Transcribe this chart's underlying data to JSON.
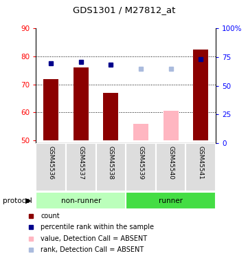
{
  "title": "GDS1301 / M27812_at",
  "samples": [
    "GSM45536",
    "GSM45537",
    "GSM45538",
    "GSM45539",
    "GSM45540",
    "GSM45541"
  ],
  "bar_values": [
    72,
    76,
    67,
    56,
    60.5,
    82.5
  ],
  "bar_absent": [
    false,
    false,
    false,
    true,
    true,
    false
  ],
  "rank_values": [
    77.5,
    78,
    77,
    75.5,
    75.5,
    79
  ],
  "rank_absent": [
    false,
    false,
    false,
    true,
    true,
    false
  ],
  "ylim_left": [
    49,
    90
  ],
  "ylim_right": [
    0,
    100
  ],
  "yticks_left": [
    50,
    60,
    70,
    80,
    90
  ],
  "yticks_right": [
    0,
    25,
    50,
    75,
    100
  ],
  "bar_color_present": "#8B0000",
  "bar_color_absent": "#FFB6C1",
  "rank_color_present": "#00008B",
  "rank_color_absent": "#AABBDD",
  "nonrunner_color": "#BBFFBB",
  "runner_color": "#44DD44",
  "sample_box_color": "#DDDDDD",
  "group_label": "protocol",
  "legend_items": [
    {
      "color": "#8B0000",
      "label": "count"
    },
    {
      "color": "#00008B",
      "label": "percentile rank within the sample"
    },
    {
      "color": "#FFB6C1",
      "label": "value, Detection Call = ABSENT"
    },
    {
      "color": "#AABBDD",
      "label": "rank, Detection Call = ABSENT"
    }
  ]
}
